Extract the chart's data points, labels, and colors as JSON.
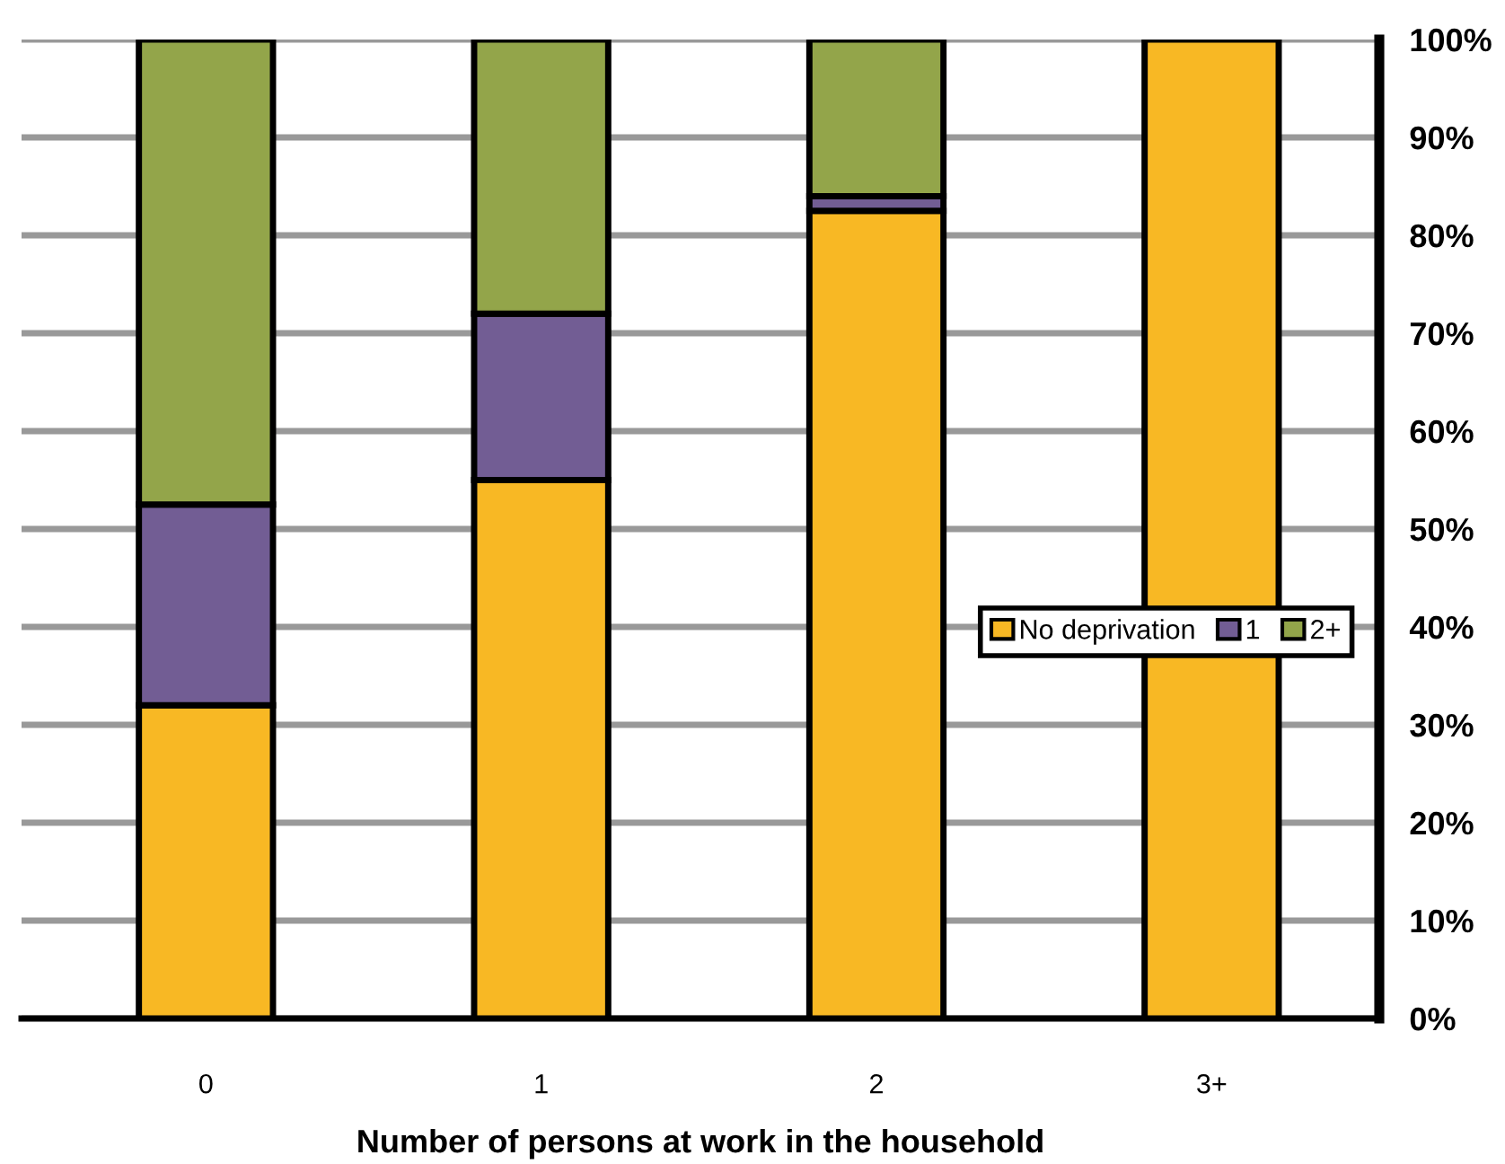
{
  "chart_data": {
    "type": "bar",
    "stacked": true,
    "xlabel": "Number of persons at work in the household",
    "categories": [
      "0",
      "1",
      "2",
      "3+"
    ],
    "series": [
      {
        "name": "No deprivation",
        "color": "#f8b824",
        "values": [
          32,
          55,
          82.5,
          100
        ]
      },
      {
        "name": "1",
        "color": "#725d94",
        "values": [
          20.5,
          17,
          1.5,
          null
        ]
      },
      {
        "name": "2+",
        "color": "#93a54a",
        "values": [
          47.5,
          28,
          16,
          null
        ]
      }
    ],
    "ylim": [
      0,
      100
    ],
    "yticks": [
      {
        "value": 0,
        "label": "0%"
      },
      {
        "value": 10,
        "label": "10%"
      },
      {
        "value": 20,
        "label": "20%"
      },
      {
        "value": 30,
        "label": "30%"
      },
      {
        "value": 40,
        "label": "40%"
      },
      {
        "value": 50,
        "label": "50%"
      },
      {
        "value": 60,
        "label": "60%"
      },
      {
        "value": 70,
        "label": "70%"
      },
      {
        "value": 80,
        "label": "80%"
      },
      {
        "value": 90,
        "label": "90%"
      },
      {
        "value": 100,
        "label": "100%"
      }
    ],
    "grid": "y",
    "legend": "right"
  }
}
